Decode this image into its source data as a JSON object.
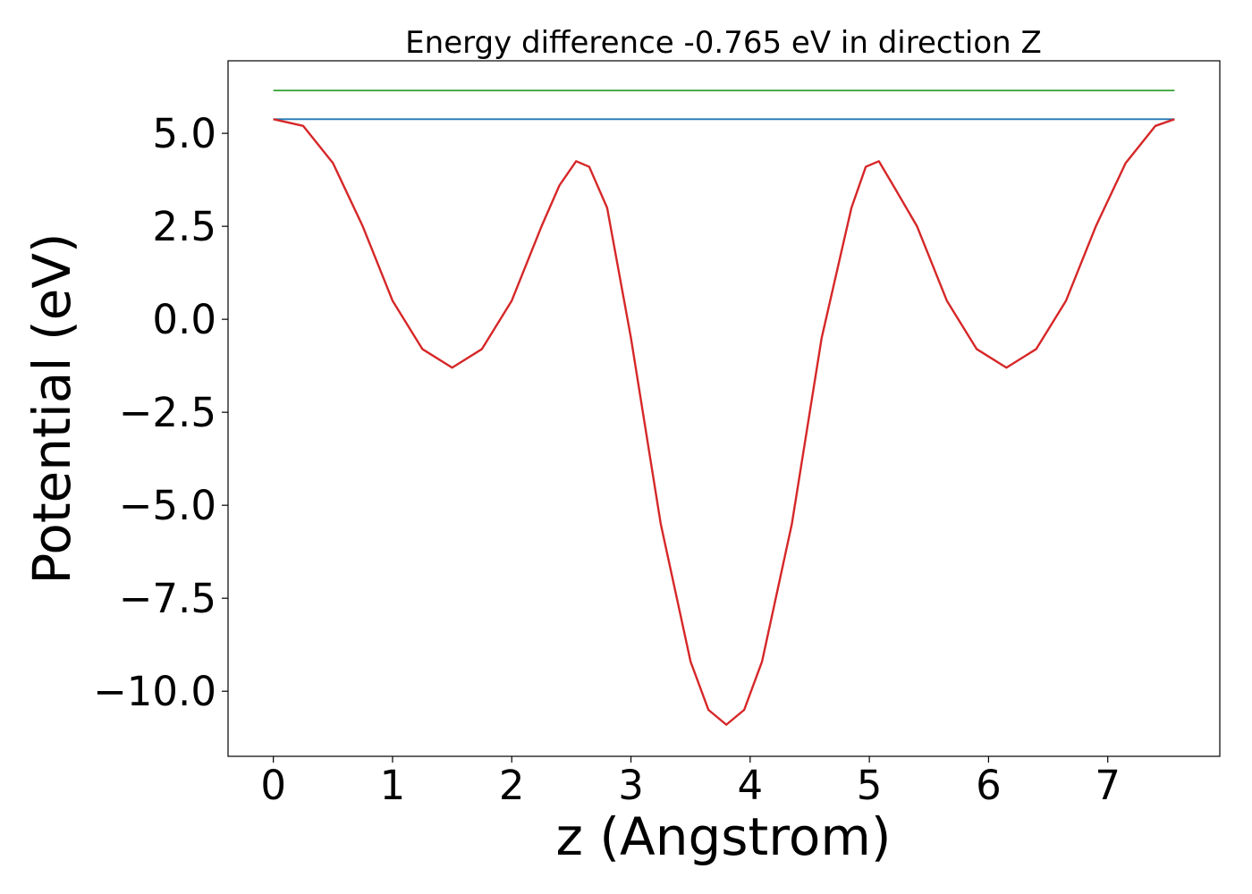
{
  "chart_data": {
    "type": "line",
    "title": "Energy difference -0.765 eV in direction Z",
    "xlabel": "z (Angstrom)",
    "ylabel": "Potential (eV)",
    "xlim": [
      -0.38,
      7.94
    ],
    "ylim": [
      -11.75,
      6.95
    ],
    "xticks": [
      0,
      1,
      2,
      3,
      4,
      5,
      6,
      7
    ],
    "xtick_labels": [
      "0",
      "1",
      "2",
      "3",
      "4",
      "5",
      "6",
      "7"
    ],
    "yticks": [
      5.0,
      2.5,
      0.0,
      -2.5,
      -5.0,
      -7.5,
      -10.0
    ],
    "ytick_labels": [
      "5.0",
      "2.5",
      "0.0",
      "−2.5",
      "−5.0",
      "−7.5",
      "−10.0"
    ],
    "grid": false,
    "series": [
      {
        "color": "#2ca02c",
        "x": [
          0,
          7.56
        ],
        "y": [
          6.15,
          6.15
        ]
      },
      {
        "color": "#1f77b4",
        "x": [
          0,
          7.56
        ],
        "y": [
          5.38,
          5.38
        ]
      },
      {
        "color": "#d62728",
        "x": [
          0,
          0.25,
          0.5,
          0.75,
          1.0,
          1.25,
          1.5,
          1.75,
          2.0,
          2.25,
          2.4,
          2.54,
          2.65,
          2.8,
          3.0,
          3.25,
          3.5,
          3.65,
          3.8,
          3.95,
          4.1,
          4.35,
          4.6,
          4.85,
          4.97,
          5.08,
          5.2,
          5.4,
          5.65,
          5.9,
          6.15,
          6.4,
          6.65,
          6.9,
          7.15,
          7.4,
          7.56
        ],
        "y": [
          5.38,
          5.2,
          4.2,
          2.5,
          0.5,
          -0.8,
          -1.3,
          -0.8,
          0.5,
          2.5,
          3.6,
          4.25,
          4.1,
          3.0,
          -0.5,
          -5.5,
          -9.2,
          -10.5,
          -10.9,
          -10.5,
          -9.2,
          -5.5,
          -0.5,
          3.0,
          4.1,
          4.25,
          3.6,
          2.5,
          0.5,
          -0.8,
          -1.3,
          -0.8,
          0.5,
          2.5,
          4.2,
          5.2,
          5.38
        ]
      }
    ]
  }
}
